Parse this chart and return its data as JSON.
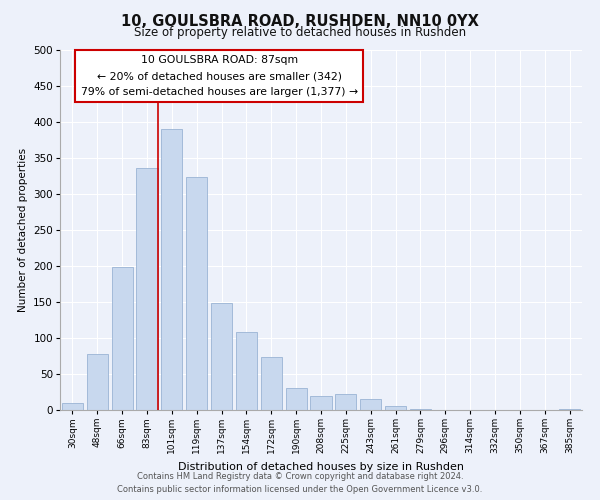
{
  "title": "10, GOULSBRA ROAD, RUSHDEN, NN10 0YX",
  "subtitle": "Size of property relative to detached houses in Rushden",
  "xlabel": "Distribution of detached houses by size in Rushden",
  "ylabel": "Number of detached properties",
  "bar_labels": [
    "30sqm",
    "48sqm",
    "66sqm",
    "83sqm",
    "101sqm",
    "119sqm",
    "137sqm",
    "154sqm",
    "172sqm",
    "190sqm",
    "208sqm",
    "225sqm",
    "243sqm",
    "261sqm",
    "279sqm",
    "296sqm",
    "314sqm",
    "332sqm",
    "350sqm",
    "367sqm",
    "385sqm"
  ],
  "bar_values": [
    10,
    78,
    198,
    336,
    390,
    323,
    148,
    109,
    73,
    30,
    20,
    22,
    15,
    5,
    2,
    0,
    0,
    0,
    0,
    0,
    2
  ],
  "bar_color": "#c8d8ee",
  "bar_edge_color": "#9ab4d4",
  "annotation_title": "10 GOULSBRA ROAD: 87sqm",
  "annotation_line1": "← 20% of detached houses are smaller (342)",
  "annotation_line2": "79% of semi-detached houses are larger (1,377) →",
  "annotation_box_color": "#ffffff",
  "annotation_box_edge": "#cc0000",
  "marker_line_color": "#cc0000",
  "ylim": [
    0,
    500
  ],
  "yticks": [
    0,
    50,
    100,
    150,
    200,
    250,
    300,
    350,
    400,
    450,
    500
  ],
  "footer_line1": "Contains HM Land Registry data © Crown copyright and database right 2024.",
  "footer_line2": "Contains public sector information licensed under the Open Government Licence v3.0.",
  "bg_color": "#edf1fa",
  "plot_bg_color": "#edf1fa"
}
